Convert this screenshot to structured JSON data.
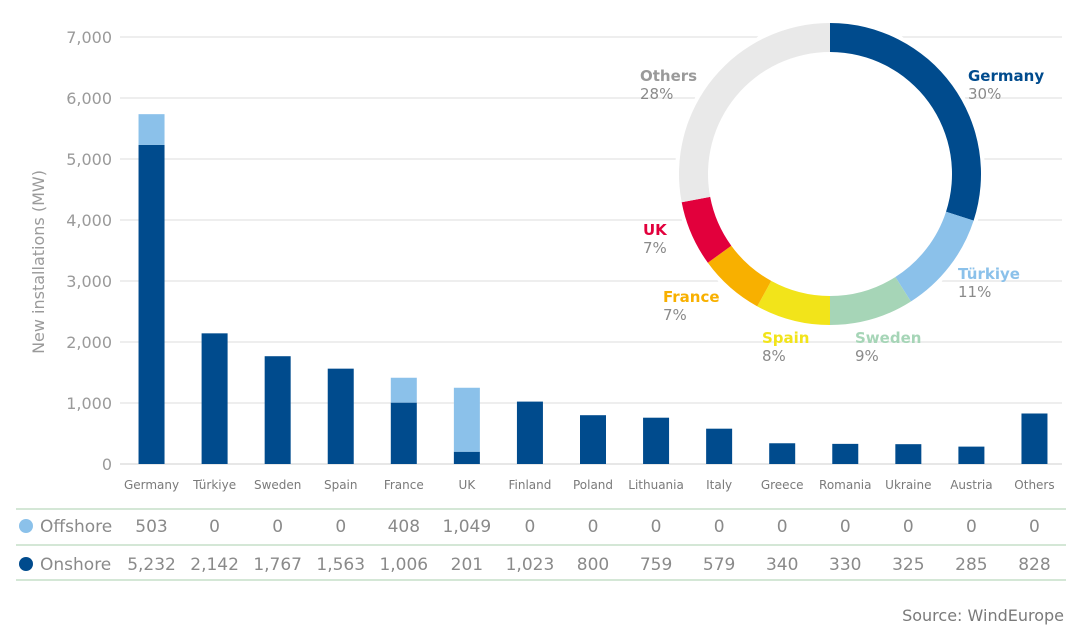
{
  "chart_data": [
    {
      "type": "bar",
      "stacked": true,
      "ylabel": "New installations (MW)",
      "ylim": [
        0,
        7000
      ],
      "yticks": [
        0,
        1000,
        2000,
        3000,
        4000,
        5000,
        6000,
        7000
      ],
      "ytick_labels": [
        "0",
        "1,000",
        "2,000",
        "3,000",
        "4,000",
        "5,000",
        "6,000",
        "7,000"
      ],
      "categories": [
        "Germany",
        "Türkiye",
        "Sweden",
        "Spain",
        "France",
        "UK",
        "Finland",
        "Poland",
        "Lithuania",
        "Italy",
        "Greece",
        "Romania",
        "Ukraine",
        "Austria",
        "Others"
      ],
      "series": [
        {
          "name": "Onshore",
          "color": "#004b8d",
          "values": [
            5232,
            2142,
            1767,
            1563,
            1006,
            201,
            1023,
            800,
            759,
            579,
            340,
            330,
            325,
            285,
            828
          ],
          "labels": [
            "5,232",
            "2,142",
            "1,767",
            "1,563",
            "1,006",
            "201",
            "1,023",
            "800",
            "759",
            "579",
            "340",
            "330",
            "325",
            "285",
            "828"
          ]
        },
        {
          "name": "Offshore",
          "color": "#8bc1ea",
          "values": [
            503,
            0,
            0,
            0,
            408,
            1049,
            0,
            0,
            0,
            0,
            0,
            0,
            0,
            0,
            0
          ],
          "labels": [
            "503",
            "0",
            "0",
            "0",
            "408",
            "1,049",
            "0",
            "0",
            "0",
            "0",
            "0",
            "0",
            "0",
            "0",
            "0"
          ]
        }
      ]
    },
    {
      "type": "pie",
      "donut": true,
      "slices": [
        {
          "label": "Germany",
          "pct": "30%",
          "value": 30,
          "color": "#004b8d"
        },
        {
          "label": "Türkiye",
          "pct": "11%",
          "value": 11,
          "color": "#8bc1ea"
        },
        {
          "label": "Sweden",
          "pct": "9%",
          "value": 9,
          "color": "#a6d5b7"
        },
        {
          "label": "Spain",
          "pct": "8%",
          "value": 8,
          "color": "#f2e41a"
        },
        {
          "label": "France",
          "pct": "7%",
          "value": 7,
          "color": "#f8b000"
        },
        {
          "label": "UK",
          "pct": "7%",
          "value": 7,
          "color": "#e2003c"
        },
        {
          "label": "Others",
          "pct": "28%",
          "value": 28,
          "color": "#e9e9e9"
        }
      ]
    }
  ],
  "source": "Source: WindEurope",
  "colors": {
    "grid": "#dedede",
    "axis": "#cfcfcf",
    "table_line": "#a9cfae",
    "others_label": "#9a9a9a"
  }
}
